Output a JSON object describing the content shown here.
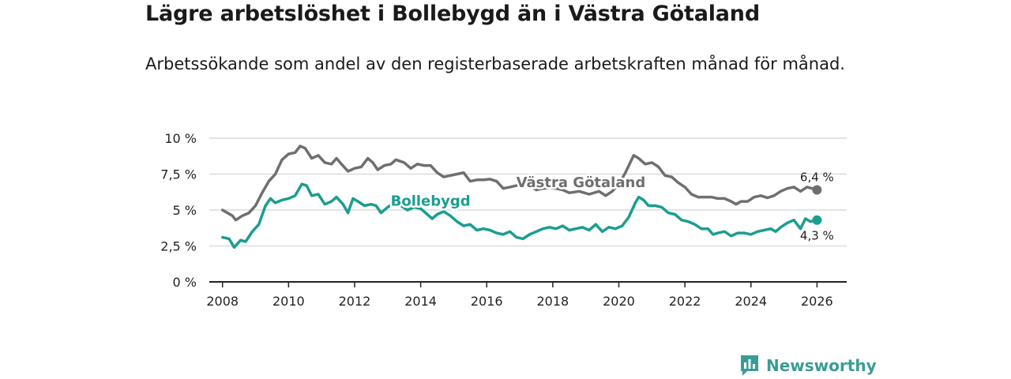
{
  "title": "Lägre arbetslöshet i Bollebygd än i Västra Götaland",
  "subtitle": "Arbetssökande som andel av den registerbaserade arbetskraften månad för månad.",
  "brand": "Newsworthy",
  "colors": {
    "bollebygd": "#1a9e8f",
    "vastra": "#6f6f72",
    "grid": "#dcdcdc",
    "axis": "#222222"
  },
  "chart_data": {
    "type": "line",
    "title": "Lägre arbetslöshet i Bollebygd än i Västra Götaland",
    "xlabel": "",
    "ylabel": "",
    "xlim": [
      2007.6,
      2026.9
    ],
    "ylim": [
      0,
      10
    ],
    "x_ticks": [
      2008,
      2010,
      2012,
      2014,
      2016,
      2018,
      2020,
      2022,
      2024,
      2026
    ],
    "x_tick_labels": [
      "2008",
      "2010",
      "2012",
      "2014",
      "2016",
      "2018",
      "2020",
      "2022",
      "2024",
      "2026"
    ],
    "y_ticks": [
      0,
      2.5,
      5,
      7.5,
      10
    ],
    "y_tick_labels": [
      "0 %",
      "2,5 %",
      "5 %",
      "7,5 %",
      "10 %"
    ],
    "grid": true,
    "series": [
      {
        "name": "Västra Götaland",
        "end_label": "6,4 %",
        "points": [
          [
            2008.0,
            5.0
          ],
          [
            2008.3,
            4.6
          ],
          [
            2008.4,
            4.3
          ],
          [
            2008.6,
            4.6
          ],
          [
            2008.8,
            4.8
          ],
          [
            2009.0,
            5.3
          ],
          [
            2009.2,
            6.2
          ],
          [
            2009.4,
            7.0
          ],
          [
            2009.6,
            7.5
          ],
          [
            2009.8,
            8.5
          ],
          [
            2010.0,
            8.9
          ],
          [
            2010.2,
            9.0
          ],
          [
            2010.35,
            9.45
          ],
          [
            2010.5,
            9.3
          ],
          [
            2010.7,
            8.6
          ],
          [
            2010.9,
            8.8
          ],
          [
            2011.1,
            8.3
          ],
          [
            2011.3,
            8.2
          ],
          [
            2011.45,
            8.6
          ],
          [
            2011.6,
            8.2
          ],
          [
            2011.8,
            7.7
          ],
          [
            2012.0,
            7.9
          ],
          [
            2012.2,
            8.0
          ],
          [
            2012.4,
            8.6
          ],
          [
            2012.55,
            8.3
          ],
          [
            2012.7,
            7.8
          ],
          [
            2012.9,
            8.1
          ],
          [
            2013.1,
            8.2
          ],
          [
            2013.25,
            8.5
          ],
          [
            2013.5,
            8.3
          ],
          [
            2013.7,
            7.9
          ],
          [
            2013.9,
            8.2
          ],
          [
            2014.1,
            8.1
          ],
          [
            2014.3,
            8.1
          ],
          [
            2014.5,
            7.6
          ],
          [
            2014.7,
            7.3
          ],
          [
            2014.9,
            7.4
          ],
          [
            2015.1,
            7.5
          ],
          [
            2015.3,
            7.6
          ],
          [
            2015.5,
            7.0
          ],
          [
            2015.7,
            7.1
          ],
          [
            2015.9,
            7.1
          ],
          [
            2016.1,
            7.15
          ],
          [
            2016.3,
            7.0
          ],
          [
            2016.5,
            6.5
          ],
          [
            2016.7,
            6.6
          ],
          [
            2016.9,
            6.7
          ],
          [
            2017.1,
            6.8
          ],
          [
            2017.3,
            6.7
          ],
          [
            2017.5,
            6.4
          ],
          [
            2017.7,
            6.5
          ],
          [
            2017.9,
            6.55
          ],
          [
            2018.1,
            6.5
          ],
          [
            2018.3,
            6.4
          ],
          [
            2018.5,
            6.2
          ],
          [
            2018.8,
            6.3
          ],
          [
            2019.1,
            6.1
          ],
          [
            2019.4,
            6.3
          ],
          [
            2019.6,
            6.0
          ],
          [
            2019.8,
            6.3
          ],
          [
            2020.0,
            6.8
          ],
          [
            2020.2,
            7.6
          ],
          [
            2020.45,
            8.8
          ],
          [
            2020.6,
            8.6
          ],
          [
            2020.8,
            8.2
          ],
          [
            2021.0,
            8.3
          ],
          [
            2021.2,
            8.0
          ],
          [
            2021.4,
            7.4
          ],
          [
            2021.6,
            7.3
          ],
          [
            2021.8,
            6.9
          ],
          [
            2022.0,
            6.6
          ],
          [
            2022.2,
            6.1
          ],
          [
            2022.4,
            5.9
          ],
          [
            2022.6,
            5.9
          ],
          [
            2022.8,
            5.9
          ],
          [
            2023.0,
            5.8
          ],
          [
            2023.2,
            5.8
          ],
          [
            2023.4,
            5.6
          ],
          [
            2023.55,
            5.4
          ],
          [
            2023.7,
            5.6
          ],
          [
            2023.9,
            5.6
          ],
          [
            2024.1,
            5.9
          ],
          [
            2024.3,
            6.0
          ],
          [
            2024.5,
            5.85
          ],
          [
            2024.7,
            6.0
          ],
          [
            2024.9,
            6.3
          ],
          [
            2025.1,
            6.5
          ],
          [
            2025.3,
            6.6
          ],
          [
            2025.5,
            6.3
          ],
          [
            2025.7,
            6.6
          ],
          [
            2025.85,
            6.5
          ],
          [
            2026.0,
            6.4
          ]
        ]
      },
      {
        "name": "Bollebygd",
        "end_label": "4,3 %",
        "points": [
          [
            2008.0,
            3.1
          ],
          [
            2008.2,
            3.0
          ],
          [
            2008.35,
            2.4
          ],
          [
            2008.55,
            2.9
          ],
          [
            2008.7,
            2.8
          ],
          [
            2008.9,
            3.5
          ],
          [
            2009.1,
            4.0
          ],
          [
            2009.3,
            5.3
          ],
          [
            2009.45,
            5.8
          ],
          [
            2009.6,
            5.5
          ],
          [
            2009.8,
            5.7
          ],
          [
            2010.0,
            5.8
          ],
          [
            2010.2,
            6.0
          ],
          [
            2010.4,
            6.8
          ],
          [
            2010.55,
            6.7
          ],
          [
            2010.7,
            6.0
          ],
          [
            2010.9,
            6.1
          ],
          [
            2011.1,
            5.4
          ],
          [
            2011.3,
            5.6
          ],
          [
            2011.45,
            5.9
          ],
          [
            2011.65,
            5.4
          ],
          [
            2011.8,
            4.8
          ],
          [
            2011.95,
            5.8
          ],
          [
            2012.1,
            5.6
          ],
          [
            2012.3,
            5.3
          ],
          [
            2012.5,
            5.4
          ],
          [
            2012.65,
            5.3
          ],
          [
            2012.8,
            4.8
          ],
          [
            2013.0,
            5.2
          ],
          [
            2013.2,
            5.5
          ],
          [
            2013.4,
            5.3
          ],
          [
            2013.6,
            5.0
          ],
          [
            2013.8,
            5.2
          ],
          [
            2014.0,
            5.1
          ],
          [
            2014.2,
            4.7
          ],
          [
            2014.35,
            4.4
          ],
          [
            2014.5,
            4.7
          ],
          [
            2014.7,
            4.9
          ],
          [
            2014.9,
            4.6
          ],
          [
            2015.1,
            4.2
          ],
          [
            2015.3,
            3.9
          ],
          [
            2015.5,
            4.0
          ],
          [
            2015.7,
            3.6
          ],
          [
            2015.9,
            3.7
          ],
          [
            2016.1,
            3.6
          ],
          [
            2016.3,
            3.4
          ],
          [
            2016.5,
            3.3
          ],
          [
            2016.7,
            3.5
          ],
          [
            2016.9,
            3.1
          ],
          [
            2017.1,
            3.0
          ],
          [
            2017.3,
            3.3
          ],
          [
            2017.5,
            3.5
          ],
          [
            2017.7,
            3.7
          ],
          [
            2017.9,
            3.8
          ],
          [
            2018.1,
            3.7
          ],
          [
            2018.3,
            3.9
          ],
          [
            2018.5,
            3.6
          ],
          [
            2018.7,
            3.7
          ],
          [
            2018.9,
            3.8
          ],
          [
            2019.1,
            3.6
          ],
          [
            2019.3,
            4.0
          ],
          [
            2019.5,
            3.5
          ],
          [
            2019.7,
            3.8
          ],
          [
            2019.9,
            3.7
          ],
          [
            2020.1,
            3.9
          ],
          [
            2020.3,
            4.5
          ],
          [
            2020.5,
            5.5
          ],
          [
            2020.6,
            5.9
          ],
          [
            2020.75,
            5.7
          ],
          [
            2020.9,
            5.3
          ],
          [
            2021.1,
            5.3
          ],
          [
            2021.3,
            5.2
          ],
          [
            2021.5,
            4.8
          ],
          [
            2021.7,
            4.7
          ],
          [
            2021.9,
            4.3
          ],
          [
            2022.1,
            4.2
          ],
          [
            2022.3,
            4.0
          ],
          [
            2022.5,
            3.7
          ],
          [
            2022.7,
            3.7
          ],
          [
            2022.85,
            3.3
          ],
          [
            2023.0,
            3.4
          ],
          [
            2023.2,
            3.5
          ],
          [
            2023.4,
            3.2
          ],
          [
            2023.6,
            3.4
          ],
          [
            2023.8,
            3.4
          ],
          [
            2024.0,
            3.3
          ],
          [
            2024.2,
            3.5
          ],
          [
            2024.4,
            3.6
          ],
          [
            2024.6,
            3.7
          ],
          [
            2024.75,
            3.5
          ],
          [
            2024.9,
            3.8
          ],
          [
            2025.1,
            4.1
          ],
          [
            2025.3,
            4.3
          ],
          [
            2025.5,
            3.7
          ],
          [
            2025.65,
            4.4
          ],
          [
            2025.8,
            4.2
          ],
          [
            2026.0,
            4.3
          ]
        ]
      }
    ]
  }
}
